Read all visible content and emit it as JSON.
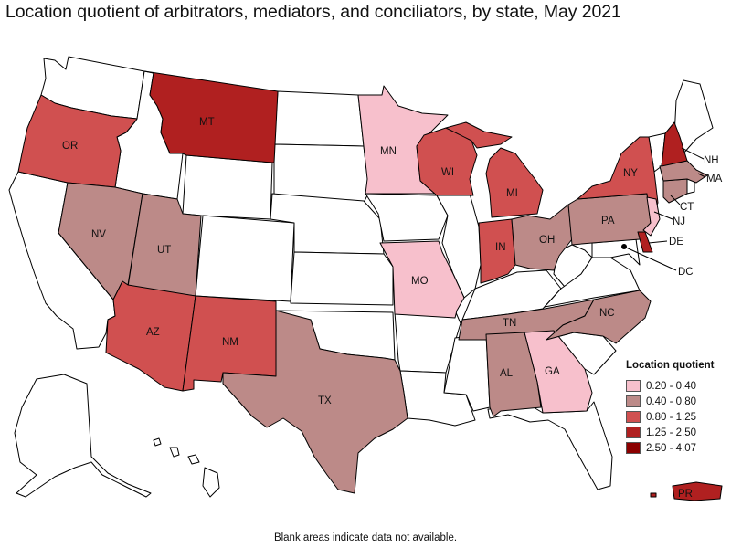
{
  "title": "Location quotient of arbitrators, mediators, and conciliators, by state, May 2021",
  "footnote": "Blank areas indicate data not available.",
  "legend": {
    "title": "Location quotient",
    "items": [
      {
        "label": "0.20 - 0.40",
        "color": "#f7c0cc"
      },
      {
        "label": "0.40 - 0.80",
        "color": "#bc8a88"
      },
      {
        "label": "0.80 - 1.25",
        "color": "#d05050"
      },
      {
        "label": "1.25 - 2.50",
        "color": "#b02020"
      },
      {
        "label": "2.50 - 4.07",
        "color": "#8b0000"
      }
    ]
  },
  "states": {
    "MT": {
      "label": "MT",
      "class": "1.25 - 2.50"
    },
    "NH": {
      "label": "NH",
      "class": "1.25 - 2.50"
    },
    "DE": {
      "label": "DE",
      "class": "1.25 - 2.50"
    },
    "PR": {
      "label": "PR",
      "class": "1.25 - 2.50"
    },
    "OR": {
      "label": "OR",
      "class": "0.80 - 1.25"
    },
    "AZ": {
      "label": "AZ",
      "class": "0.80 - 1.25"
    },
    "NM": {
      "label": "NM",
      "class": "0.80 - 1.25"
    },
    "WI": {
      "label": "WI",
      "class": "0.80 - 1.25"
    },
    "MI": {
      "label": "MI",
      "class": "0.80 - 1.25"
    },
    "IN": {
      "label": "IN",
      "class": "0.80 - 1.25"
    },
    "NY": {
      "label": "NY",
      "class": "0.80 - 1.25"
    },
    "NV": {
      "label": "NV",
      "class": "0.40 - 0.80"
    },
    "UT": {
      "label": "UT",
      "class": "0.40 - 0.80"
    },
    "TX": {
      "label": "TX",
      "class": "0.40 - 0.80"
    },
    "TN": {
      "label": "TN",
      "class": "0.40 - 0.80"
    },
    "AL": {
      "label": "AL",
      "class": "0.40 - 0.80"
    },
    "NC": {
      "label": "NC",
      "class": "0.40 - 0.80"
    },
    "OH": {
      "label": "OH",
      "class": "0.40 - 0.80"
    },
    "PA": {
      "label": "PA",
      "class": "0.40 - 0.80"
    },
    "MA": {
      "label": "MA",
      "class": "0.40 - 0.80"
    },
    "CT": {
      "label": "CT",
      "class": "0.40 - 0.80"
    },
    "MN": {
      "label": "MN",
      "class": "0.20 - 0.40"
    },
    "MO": {
      "label": "MO",
      "class": "0.20 - 0.40"
    },
    "GA": {
      "label": "GA",
      "class": "0.20 - 0.40"
    },
    "NJ": {
      "label": "NJ",
      "class": "0.20 - 0.40"
    },
    "DC": {
      "label": "DC",
      "class": ""
    }
  }
}
